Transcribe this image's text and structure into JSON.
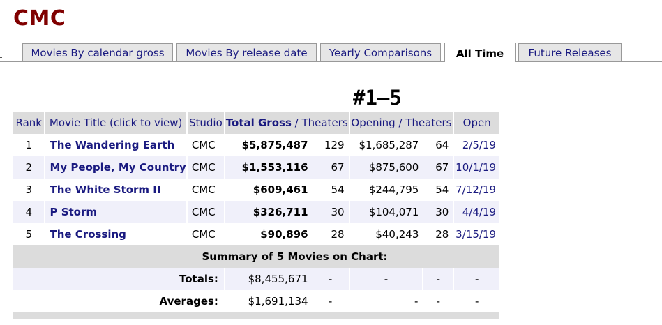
{
  "brand": "CMC",
  "tabs": [
    {
      "label": "Movies By  calendar gross"
    },
    {
      "label": "Movies By  release date"
    },
    {
      "label": "Yearly Comparisons"
    },
    {
      "label": "All Time"
    },
    {
      "label": "Future Releases"
    }
  ],
  "range_title": "#1–5",
  "table": {
    "headers": {
      "rank": "Rank",
      "title": "Movie Title (click to view)",
      "studio": "Studio",
      "total_gross": "Total Gross",
      "sep1": " / ",
      "theaters": "Theaters",
      "opening": "Opening",
      "sep2": " / ",
      "opening_theaters": "Theaters",
      "open": "Open"
    },
    "rows": [
      {
        "rank": "1",
        "title": "The Wandering Earth",
        "studio": "CMC",
        "gross": "$5,875,487",
        "theaters": "129",
        "opening": "$1,685,287",
        "opening_theaters": "64",
        "open": "2/5/19"
      },
      {
        "rank": "2",
        "title": "My People, My Country",
        "studio": "CMC",
        "gross": "$1,553,116",
        "theaters": "67",
        "opening": "$875,600",
        "opening_theaters": "67",
        "open": "10/1/19"
      },
      {
        "rank": "3",
        "title": "The White Storm II",
        "studio": "CMC",
        "gross": "$609,461",
        "theaters": "54",
        "opening": "$244,795",
        "opening_theaters": "54",
        "open": "7/12/19"
      },
      {
        "rank": "4",
        "title": "P Storm",
        "studio": "CMC",
        "gross": "$326,711",
        "theaters": "30",
        "opening": "$104,071",
        "opening_theaters": "30",
        "open": "4/4/19"
      },
      {
        "rank": "5",
        "title": "The Crossing",
        "studio": "CMC",
        "gross": "$90,896",
        "theaters": "28",
        "opening": "$40,243",
        "opening_theaters": "28",
        "open": "3/15/19"
      }
    ],
    "summary": "Summary of 5 Movies on Chart:",
    "totals": {
      "label": "Totals:",
      "gross": "$8,455,671",
      "theaters": "-",
      "opening": "-",
      "opening_theaters": "-",
      "open": "-"
    },
    "averages": {
      "label": "Averages:",
      "gross": "$1,691,134",
      "theaters": "-",
      "opening": "-",
      "opening_theaters": "-",
      "open": "-"
    }
  }
}
